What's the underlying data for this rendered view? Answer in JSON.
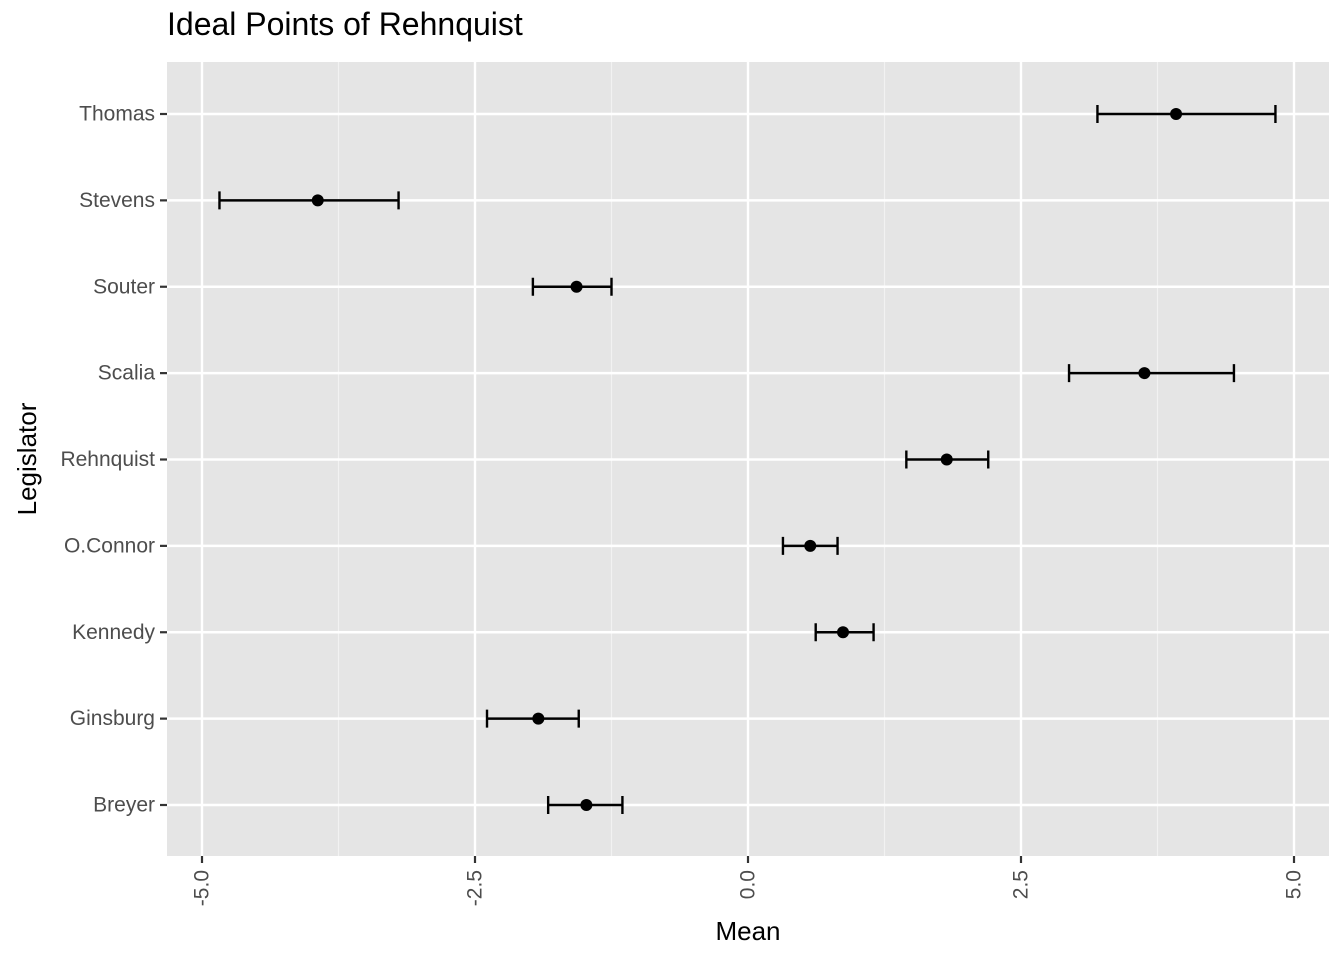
{
  "chart_data": {
    "type": "scatter",
    "subtype": "point-with-error-bars",
    "title": "Ideal Points of Rehnquist",
    "xlabel": "Mean",
    "ylabel": "Legislator",
    "xlim": [
      -5.25,
      5.3
    ],
    "x_ticks": [
      "-5.0",
      "-2.5",
      "0.0",
      "2.5",
      "5.0"
    ],
    "x_tick_values": [
      -5.0,
      -2.5,
      0.0,
      2.5,
      5.0
    ],
    "categories": [
      "Thomas",
      "Stevens",
      "Souter",
      "Scalia",
      "Rehnquist",
      "O.Connor",
      "Kennedy",
      "Ginsburg",
      "Breyer"
    ],
    "values": [
      3.92,
      -3.94,
      -1.57,
      3.63,
      1.82,
      0.57,
      0.87,
      -1.92,
      -1.48
    ],
    "lower": [
      3.2,
      -4.84,
      -1.97,
      2.94,
      1.45,
      0.32,
      0.62,
      -2.39,
      -1.83
    ],
    "upper": [
      4.83,
      -3.2,
      -1.25,
      4.45,
      2.2,
      0.82,
      1.15,
      -1.55,
      -1.15
    ],
    "grid": true,
    "point_color": "#000000",
    "panel_background": "#e5e5e5"
  }
}
